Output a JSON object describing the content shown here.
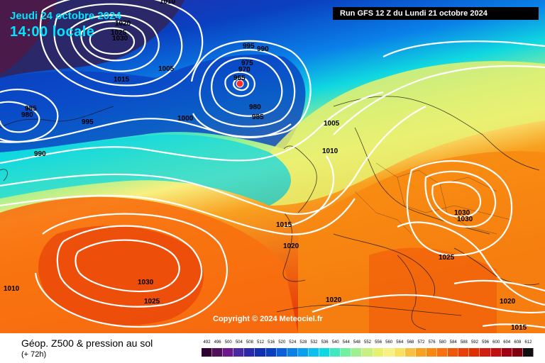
{
  "title": {
    "date": "Jeudi 24 octobre 2024",
    "time": "14:00 locale"
  },
  "run_info": "Run GFS 12 Z du Lundi 21 octobre 2024",
  "copyright": "Copyright © 2024 Meteociel.fr",
  "legend": {
    "title": "Géop. Z500 & pression au sol",
    "subtitle": "(+ 72h)",
    "scale": [
      "492",
      "496",
      "500",
      "504",
      "508",
      "512",
      "516",
      "520",
      "524",
      "528",
      "532",
      "536",
      "540",
      "544",
      "548",
      "552",
      "556",
      "560",
      "564",
      "568",
      "572",
      "576",
      "580",
      "584",
      "588",
      "592",
      "596",
      "600",
      "604",
      "608",
      "612"
    ],
    "colors": [
      "#300030",
      "#50105a",
      "#6a1a8a",
      "#4a2aa0",
      "#2a2aa8",
      "#1030b0",
      "#0a40c0",
      "#0a60d8",
      "#0a80e8",
      "#0aa0f0",
      "#0ac0f0",
      "#10d8e0",
      "#40e8c0",
      "#70f0a0",
      "#a0f090",
      "#c8f080",
      "#e8f070",
      "#f8f080",
      "#f8e060",
      "#f8c040",
      "#f8a020",
      "#f88810",
      "#f87010",
      "#f05808",
      "#e84008",
      "#e03000",
      "#d02010",
      "#c01010",
      "#a00010",
      "#800010",
      "#101010"
    ]
  },
  "isobars": [
    "1010",
    "1020",
    "1025",
    "1030",
    "1005",
    "995",
    "990",
    "970",
    "965",
    "975",
    "980",
    "985",
    "1015",
    "1000",
    "995",
    "980",
    "985",
    "990",
    "1005",
    "1010",
    "1015",
    "1020",
    "1030",
    "1030",
    "1025",
    "1020",
    "1030",
    "1025",
    "1020",
    "1010",
    "1015"
  ],
  "icons": {
    "low_marker": "low-pressure-marker"
  }
}
